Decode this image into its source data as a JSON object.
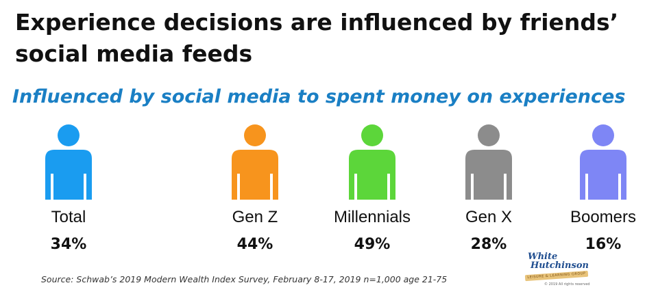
{
  "title": "Experience decisions are influenced by friends’ social media feeds",
  "subtitle": "Influenced by social media to spent money on experiences",
  "source": "Source: Schwab’s 2019 Modern Wealth Index Survey, February 8-17, 2019 n=1,000 age 21-75",
  "logo": {
    "line1": "White",
    "line2": "Hutchinson",
    "tagline": "LEISURE & LEARNING GROUP",
    "copyright": "© 2019 All rights reserved"
  },
  "colors": {
    "title": "#111111",
    "subtitle": "#1a7fc4",
    "total": "#1a9cf0",
    "gen_z": "#f7941d",
    "millennials": "#5cd63a",
    "gen_x": "#8c8c8c",
    "boomers": "#7e86f5"
  },
  "chart_data": {
    "type": "bar",
    "categories": [
      "Total",
      "Gen Z",
      "Millennials",
      "Gen X",
      "Boomers"
    ],
    "values": [
      34,
      44,
      49,
      28,
      16
    ],
    "value_labels": [
      "34%",
      "44%",
      "49%",
      "28%",
      "16%"
    ],
    "unit": "%",
    "title": "Influenced by social media to spent money on experiences",
    "icon": "person-icon",
    "colors": [
      "#1a9cf0",
      "#f7941d",
      "#5cd63a",
      "#8c8c8c",
      "#7e86f5"
    ]
  }
}
